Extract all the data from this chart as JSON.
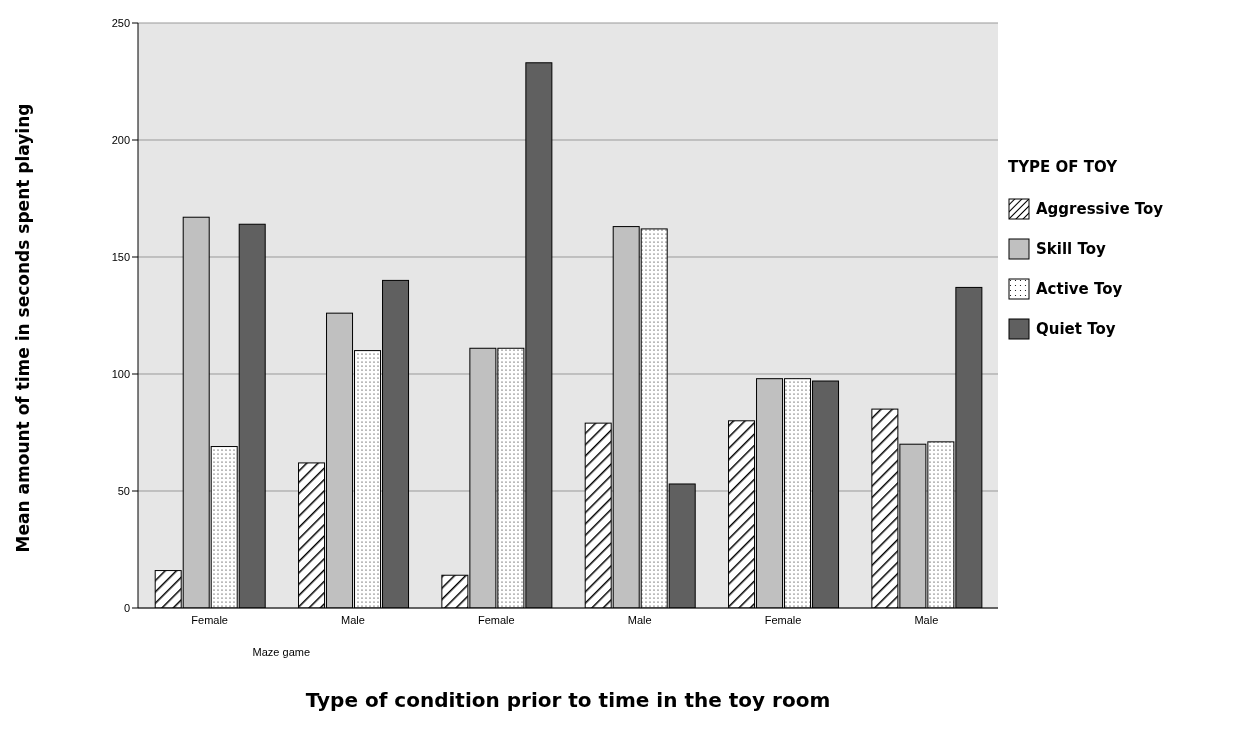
{
  "chart_data": {
    "type": "bar",
    "xlabel": "Type of condition prior to time in the toy room",
    "ylabel": "Mean amount of time in seconds spent playing",
    "legend_title": "TYPE OF TOY",
    "categories": [
      "Female",
      "Male",
      "Female",
      "Male",
      "Female",
      "Male"
    ],
    "series": [
      {
        "name": "Aggressive Toy",
        "color": "#ffffff",
        "values": [
          16,
          62,
          14,
          79,
          80,
          85
        ]
      },
      {
        "name": "Skill Toy",
        "color": "#c0c0c0",
        "values": [
          167,
          126,
          111,
          163,
          98,
          70
        ]
      },
      {
        "name": "Active Toy",
        "color": "#ffffff",
        "values": [
          69,
          110,
          111,
          162,
          98,
          71
        ]
      },
      {
        "name": "Quiet Toy",
        "color": "#606060",
        "values": [
          164,
          140,
          233,
          53,
          97,
          137
        ]
      }
    ],
    "annotations": [
      "Maze game"
    ],
    "ylim": [
      0,
      250
    ],
    "yticks": [
      0,
      50,
      100,
      150,
      200,
      250
    ],
    "grid": "y",
    "legend": "right"
  }
}
